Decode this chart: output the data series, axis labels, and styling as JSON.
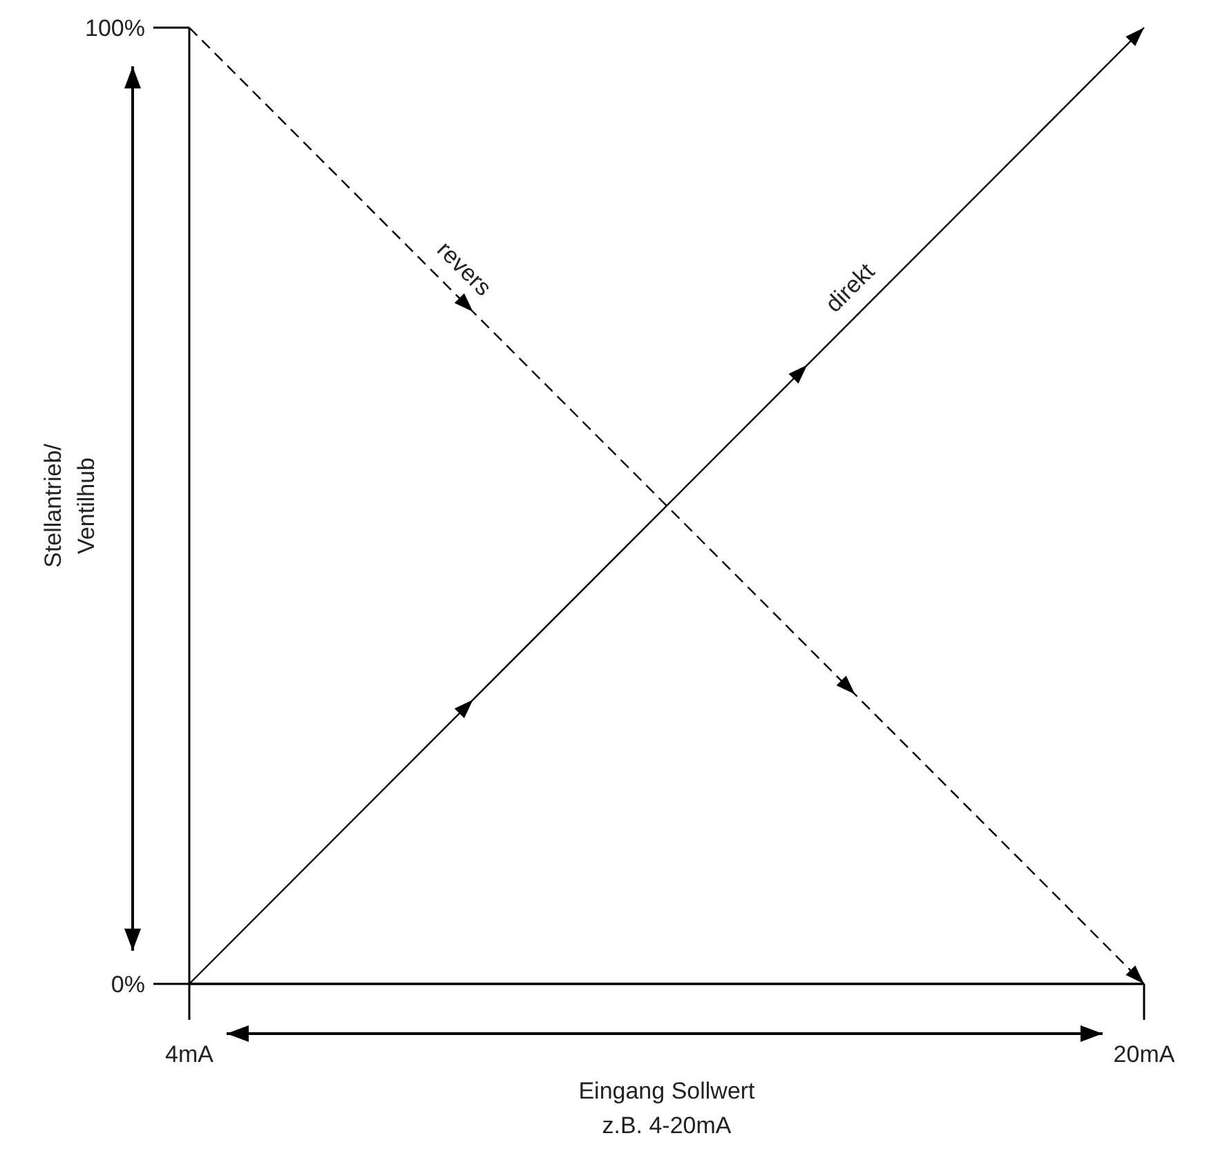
{
  "chart_data": {
    "type": "line",
    "xlabel": "Eingang Sollwert\nz.B. 4-20mA",
    "ylabel": "Stellantrieb/\nVentilhub",
    "xlim": [
      4,
      20
    ],
    "xticks": [
      {
        "value": 4,
        "label": "4mA"
      },
      {
        "value": 20,
        "label": "20mA"
      }
    ],
    "ylim": [
      0,
      100
    ],
    "yticks": [
      {
        "value": 0,
        "label": "0%"
      },
      {
        "value": 100,
        "label": "100%"
      }
    ],
    "grid": false,
    "marker": "none",
    "x": [
      4,
      20
    ],
    "series": [
      {
        "name": "revers",
        "color": "#000000",
        "values": [
          100,
          0
        ],
        "line_style": "dashed"
      },
      {
        "name": "direkt",
        "color": "#000000",
        "values": [
          0,
          100
        ],
        "line_style": "solid"
      }
    ]
  }
}
